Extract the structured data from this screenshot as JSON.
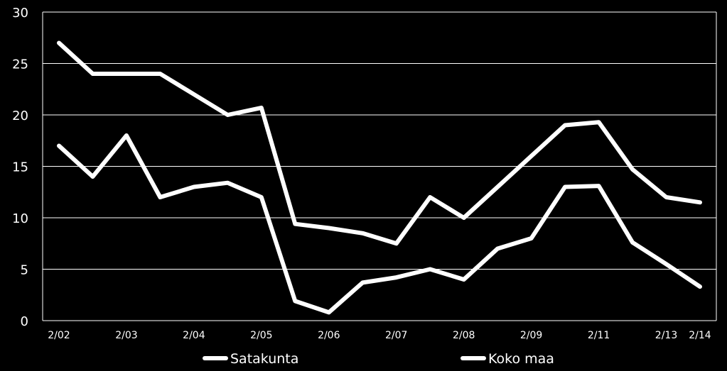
{
  "chart_data": {
    "type": "line",
    "ylim": [
      0,
      30
    ],
    "y_ticks": [
      0,
      5,
      10,
      15,
      20,
      25,
      30
    ],
    "x_points": 20,
    "x_tick_labels": [
      {
        "index": 0,
        "label": "2/02"
      },
      {
        "index": 2,
        "label": "2/03"
      },
      {
        "index": 4,
        "label": "2/04"
      },
      {
        "index": 6,
        "label": "2/05"
      },
      {
        "index": 8,
        "label": "2/06"
      },
      {
        "index": 10,
        "label": "2/07"
      },
      {
        "index": 12,
        "label": "2/08"
      },
      {
        "index": 14,
        "label": "2/09"
      },
      {
        "index": 16,
        "label": "2/11"
      },
      {
        "index": 18,
        "label": "2/13"
      },
      {
        "index": 19,
        "label": "2/14"
      }
    ],
    "grid": true,
    "legend_position": "bottom",
    "series": [
      {
        "name": "Satakunta",
        "color": "#ffffff",
        "values": [
          17,
          14,
          18,
          12,
          13,
          13.4,
          12,
          1.9,
          0.8,
          3.7,
          4.2,
          5,
          4,
          7,
          8,
          13,
          13.1,
          7.6,
          5.5,
          3.3
        ]
      },
      {
        "name": "Koko maa",
        "color": "#ffffff",
        "values": [
          27,
          24,
          24,
          24,
          22,
          20,
          20.7,
          9.4,
          9,
          8.5,
          7.5,
          12,
          10,
          13,
          16,
          19,
          19.3,
          14.7,
          12,
          11.5
        ]
      }
    ]
  }
}
